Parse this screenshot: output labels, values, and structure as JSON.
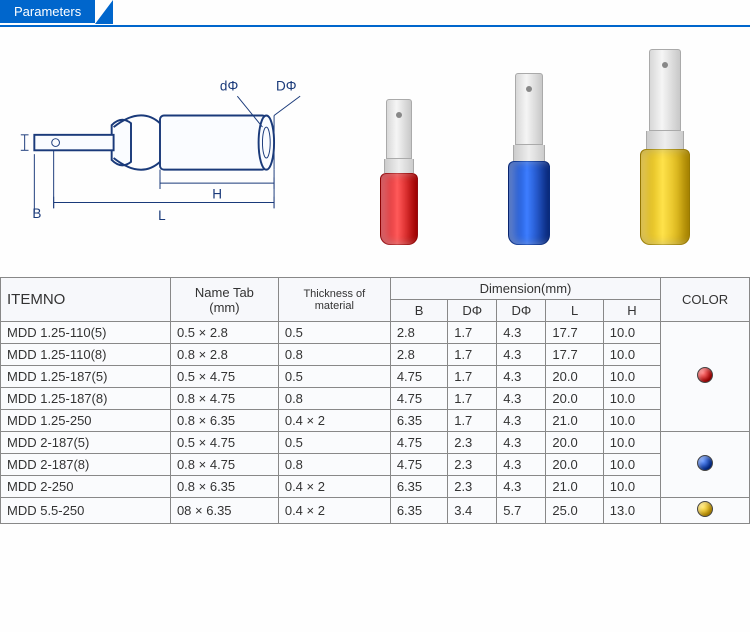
{
  "banner": "Parameters",
  "diagram_labels": {
    "D": "DΦ",
    "d": "dΦ",
    "B": "B",
    "L": "L",
    "H": "H"
  },
  "terminals": [
    {
      "color_name": "red",
      "blade_w": 26,
      "blade_h": 60,
      "neck_w": 30,
      "neck_h": 14,
      "sleeve_w": 38,
      "sleeve_h": 72
    },
    {
      "color_name": "blue",
      "blade_w": 28,
      "blade_h": 72,
      "neck_w": 32,
      "neck_h": 16,
      "sleeve_w": 42,
      "sleeve_h": 84
    },
    {
      "color_name": "yellow",
      "blade_w": 32,
      "blade_h": 82,
      "neck_w": 38,
      "neck_h": 18,
      "sleeve_w": 50,
      "sleeve_h": 96
    }
  ],
  "headers": {
    "item": "ITEMNO",
    "tab": "Name Tab\n(mm)",
    "thick": "Thickness of\nmaterial",
    "dim": "Dimension(mm)",
    "B": "B",
    "D1": "DΦ",
    "D2": "DΦ",
    "L": "L",
    "H": "H",
    "color": "COLOR"
  },
  "color_groups": [
    {
      "swatch": "red",
      "rows": [
        {
          "item": "MDD  1.25-110(5)",
          "tab": "0.5 × 2.8",
          "thick": "0.5",
          "B": "2.8",
          "D1": "1.7",
          "D2": "4.3",
          "L": "17.7",
          "H": "10.0"
        },
        {
          "item": "MDD  1.25-110(8)",
          "tab": "0.8 × 2.8",
          "thick": "0.8",
          "B": "2.8",
          "D1": "1.7",
          "D2": "4.3",
          "L": "17.7",
          "H": "10.0"
        },
        {
          "item": "MDD  1.25-187(5)",
          "tab": "0.5 × 4.75",
          "thick": "0.5",
          "B": "4.75",
          "D1": "1.7",
          "D2": "4.3",
          "L": "20.0",
          "H": "10.0"
        },
        {
          "item": "MDD  1.25-187(8)",
          "tab": "0.8 × 4.75",
          "thick": "0.8",
          "B": "4.75",
          "D1": "1.7",
          "D2": "4.3",
          "L": "20.0",
          "H": "10.0"
        },
        {
          "item": "MDD  1.25-250",
          "tab": "0.8 × 6.35",
          "thick": "0.4 × 2",
          "B": "6.35",
          "D1": "1.7",
          "D2": "4.3",
          "L": "21.0",
          "H": "10.0"
        }
      ]
    },
    {
      "swatch": "blue",
      "rows": [
        {
          "item": "MDD  2-187(5)",
          "tab": "0.5 × 4.75",
          "thick": "0.5",
          "B": "4.75",
          "D1": "2.3",
          "D2": "4.3",
          "L": "20.0",
          "H": "10.0"
        },
        {
          "item": "MDD  2-187(8)",
          "tab": "0.8 × 4.75",
          "thick": "0.8",
          "B": "4.75",
          "D1": "2.3",
          "D2": "4.3",
          "L": "20.0",
          "H": "10.0"
        },
        {
          "item": "MDD  2-250",
          "tab": "0.8 × 6.35",
          "thick": "0.4 × 2",
          "B": "6.35",
          "D1": "2.3",
          "D2": "4.3",
          "L": "21.0",
          "H": "10.0"
        }
      ]
    },
    {
      "swatch": "yellow",
      "rows": [
        {
          "item": "MDD  5.5-250",
          "tab": "08 × 6.35",
          "thick": "0.4 × 2",
          "B": "6.35",
          "D1": "3.4",
          "D2": "5.7",
          "L": "25.0",
          "H": "13.0"
        }
      ]
    }
  ]
}
